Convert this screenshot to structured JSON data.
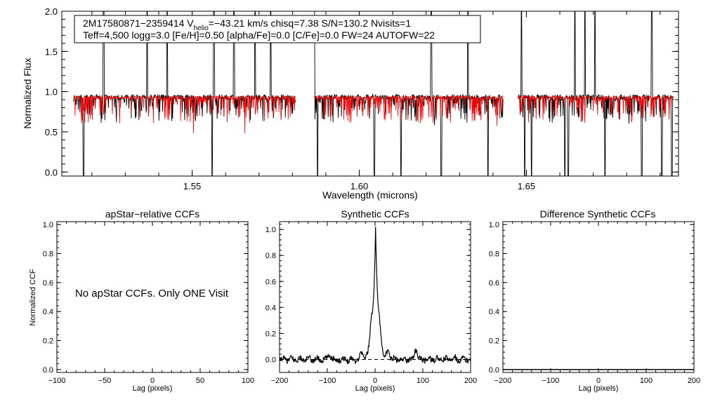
{
  "chart_data": [
    {
      "id": "spectrum",
      "type": "line",
      "title": "",
      "xlabel": "Wavelength (microns)",
      "ylabel": "Normalized Flux",
      "xlim": [
        1.511,
        1.6955
      ],
      "ylim": [
        -0.05,
        2.0
      ],
      "xticks": [
        1.55,
        1.6,
        1.65
      ],
      "xtick_labels": [
        "1.55",
        "1.60",
        "1.65"
      ],
      "yticks": [
        0.0,
        0.5,
        1.0,
        1.5,
        2.0
      ],
      "ytick_labels": [
        "0.0",
        "0.5",
        "1.0",
        "1.5",
        "2.0"
      ],
      "info_line1": {
        "prefix": "2M17580871−2359414  V",
        "sub": "helio",
        "suffix": "=−43.21 km/s  chisq=7.38  S/N=130.2  Nvisits=1"
      },
      "info_line2": "Teff=4,500 logg=3.0 [Fe/H]=0.50 [alpha/Fe]=0.0 [C/Fe]=0.0 FW=24 AUTOFW=22",
      "segments": [
        [
          1.5145,
          1.581
        ],
        [
          1.5865,
          1.643
        ],
        [
          1.6475,
          1.694
        ]
      ],
      "series": [
        {
          "name": "Observed spectrum",
          "color": "#000000",
          "baseline": 0.93,
          "noise": 0.035,
          "line_depth": 0.3,
          "spikes_up": [
            1.5235,
            1.5365,
            1.5425,
            1.5565,
            1.5625,
            1.5688,
            1.5735,
            1.5865,
            1.6045,
            1.6215,
            1.6325,
            1.6485,
            1.6645,
            1.6675,
            1.6705,
            1.6875,
            1.6935
          ],
          "spikes_down": [
            1.5175,
            1.556,
            1.5875,
            1.6045,
            1.6125,
            1.6245,
            1.6385,
            1.6495,
            1.6515,
            1.6615,
            1.6625,
            1.6735,
            1.6845,
            1.6905,
            1.6935
          ]
        },
        {
          "name": "Synthetic model",
          "color": "#ff0000",
          "baseline": 0.93,
          "noise": 0.02,
          "line_depth": 0.32,
          "spikes_up": [],
          "spikes_down": []
        }
      ]
    },
    {
      "id": "apstar",
      "type": "line",
      "title": "apStar−relative CCFs",
      "xlabel": "Lag (pixels)",
      "ylabel": "Normalized CCF",
      "xlim": [
        -100,
        100
      ],
      "ylim": [
        -0.02,
        1.02
      ],
      "xticks": [
        -100,
        -50,
        0,
        50,
        100
      ],
      "xtick_labels": [
        "−100",
        "−50",
        "0",
        "50",
        "100"
      ],
      "yticks": [
        0.0,
        0.2,
        0.4,
        0.6,
        0.8,
        1.0
      ],
      "ytick_labels": [
        "0.0",
        "0.2",
        "0.4",
        "0.6",
        "0.8",
        "1.0"
      ],
      "annotation": "No apStar CCFs.  Only ONE Visit",
      "series": []
    },
    {
      "id": "synthetic",
      "type": "line",
      "title": "Synthetic CCFs",
      "xlabel": "Lag (pixels)",
      "ylabel": "",
      "xlim": [
        -200,
        200
      ],
      "ylim": [
        -0.1,
        1.06
      ],
      "xticks": [
        -200,
        -100,
        0,
        100,
        200
      ],
      "xtick_labels": [
        "−200",
        "−100",
        "0",
        "100",
        "200"
      ],
      "yticks": [
        0.0,
        0.2,
        0.4,
        0.6,
        0.8,
        1.0
      ],
      "ytick_labels": [
        "0.0",
        "0.2",
        "0.4",
        "0.6",
        "0.8",
        "1.0"
      ],
      "zero_line": 0.0,
      "series": [
        {
          "name": "CCF",
          "color": "#000000",
          "peak_lag": 1,
          "peak_value": 1.0,
          "peak_width": 5.5,
          "side_lobes": [
            [
              -28,
              0.05
            ],
            [
              -8,
              0.12
            ],
            [
              10,
              0.1
            ],
            [
              28,
              0.05
            ],
            [
              85,
              0.08
            ],
            [
              -95,
              0.04
            ],
            [
              165,
              0.02
            ]
          ],
          "noise_amp": 0.022
        }
      ]
    },
    {
      "id": "difference",
      "type": "line",
      "title": "Difference Synthetic CCFs",
      "xlabel": "Lag (pixels)",
      "ylabel": "",
      "xlim": [
        -200,
        200
      ],
      "ylim": [
        -0.02,
        1.02
      ],
      "xticks": [
        -200,
        -100,
        0,
        100,
        200
      ],
      "xtick_labels": [
        "−200",
        "−100",
        "0",
        "100",
        "200"
      ],
      "yticks": [
        0.0,
        0.2,
        0.4,
        0.6,
        0.8,
        1.0
      ],
      "ytick_labels": [
        "0.0",
        "0.2",
        "0.4",
        "0.6",
        "0.8",
        "1.0"
      ],
      "series": [
        {
          "name": "Difference CCF",
          "color": "#000000",
          "constant": 0.0
        }
      ]
    }
  ]
}
